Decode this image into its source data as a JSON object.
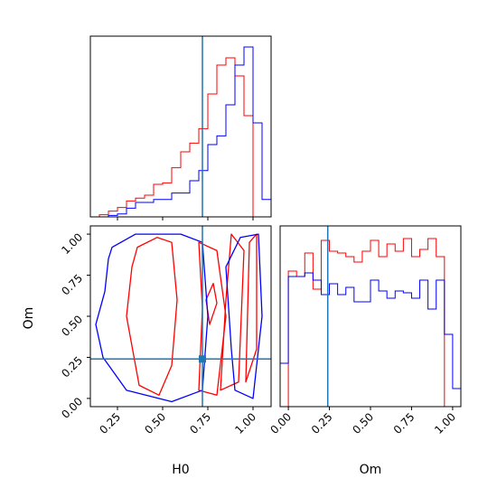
{
  "chart_data": [
    {
      "type": "histogram",
      "panel": "H0 marginal",
      "xlim": [
        0.1,
        1.1
      ],
      "truth": 0.72,
      "bin_edges": [
        0.1,
        0.15,
        0.2,
        0.25,
        0.3,
        0.35,
        0.4,
        0.45,
        0.5,
        0.55,
        0.6,
        0.65,
        0.7,
        0.75,
        0.8,
        0.85,
        0.9,
        0.95,
        1.0,
        1.05,
        1.1
      ],
      "series": [
        {
          "color": "#ff0000",
          "values": [
            0.0,
            0.3,
            0.8,
            1.3,
            2.2,
            2.6,
            3.0,
            4.5,
            4.7,
            6.8,
            9.0,
            10.2,
            12.2,
            17.0,
            21.0,
            22.0,
            19.5,
            14.0,
            0.0,
            0.0
          ]
        },
        {
          "color": "#0000ff",
          "values": [
            0.0,
            0.0,
            0.2,
            0.4,
            1.2,
            2.0,
            2.0,
            2.4,
            2.4,
            3.3,
            3.3,
            5.0,
            6.4,
            10.0,
            11.2,
            15.5,
            21.0,
            23.5,
            13.0,
            2.4
          ]
        }
      ],
      "ylim": [
        0,
        25
      ]
    },
    {
      "type": "contour",
      "panel": "H0 vs Om",
      "xlabel": "H0",
      "ylabel": "Om",
      "xlim": [
        0.1,
        1.1
      ],
      "ylim": [
        -0.05,
        1.05
      ],
      "xticks": [
        "0.25",
        "0.50",
        "0.75",
        "1.00"
      ],
      "yticks": [
        "0.00",
        "0.25",
        "0.50",
        "0.75",
        "1.00"
      ],
      "truth": [
        0.72,
        0.24
      ],
      "series": [
        {
          "color": "#ff0000",
          "levels": [
            [
              [
                0.36,
                0.92
              ],
              [
                0.47,
                0.98
              ],
              [
                0.55,
                0.95
              ],
              [
                0.58,
                0.6
              ],
              [
                0.55,
                0.2
              ],
              [
                0.48,
                0.02
              ],
              [
                0.37,
                0.08
              ],
              [
                0.3,
                0.5
              ],
              [
                0.33,
                0.8
              ],
              [
                0.36,
                0.92
              ]
            ],
            [
              [
                0.7,
                0.05
              ],
              [
                0.8,
                0.02
              ],
              [
                0.85,
                0.5
              ],
              [
                0.8,
                0.9
              ],
              [
                0.7,
                0.95
              ],
              [
                0.72,
                0.55
              ],
              [
                0.7,
                0.05
              ]
            ],
            [
              [
                0.76,
                0.45
              ],
              [
                0.8,
                0.58
              ],
              [
                0.78,
                0.7
              ],
              [
                0.74,
                0.6
              ],
              [
                0.76,
                0.45
              ]
            ],
            [
              [
                0.82,
                0.05
              ],
              [
                0.92,
                0.1
              ],
              [
                0.95,
                0.9
              ],
              [
                0.88,
                1.0
              ],
              [
                0.85,
                0.6
              ],
              [
                0.82,
                0.05
              ]
            ],
            [
              [
                0.96,
                0.1
              ],
              [
                1.02,
                0.3
              ],
              [
                1.02,
                1.0
              ],
              [
                0.98,
                0.95
              ],
              [
                0.96,
                0.1
              ]
            ]
          ]
        },
        {
          "color": "#0000ff",
          "levels": [
            [
              [
                0.22,
                0.92
              ],
              [
                0.35,
                1.0
              ],
              [
                0.6,
                1.0
              ],
              [
                0.72,
                0.95
              ],
              [
                0.75,
                0.5
              ],
              [
                0.72,
                0.05
              ],
              [
                0.55,
                -0.02
              ],
              [
                0.3,
                0.05
              ],
              [
                0.17,
                0.25
              ],
              [
                0.13,
                0.45
              ],
              [
                0.18,
                0.65
              ],
              [
                0.2,
                0.85
              ],
              [
                0.22,
                0.92
              ]
            ],
            [
              [
                0.9,
                0.05
              ],
              [
                1.0,
                0.0
              ],
              [
                1.05,
                0.5
              ],
              [
                1.03,
                1.0
              ],
              [
                0.93,
                0.98
              ],
              [
                0.85,
                0.8
              ],
              [
                0.88,
                0.3
              ],
              [
                0.9,
                0.05
              ]
            ]
          ]
        }
      ]
    },
    {
      "type": "histogram",
      "panel": "Om marginal",
      "xlabel": "Om",
      "xlim": [
        -0.05,
        1.05
      ],
      "xticks": [
        "0.00",
        "0.25",
        "0.50",
        "0.75",
        "1.00"
      ],
      "truth": 0.24,
      "bin_edges": [
        -0.05,
        0.0,
        0.05,
        0.1,
        0.15,
        0.2,
        0.25,
        0.3,
        0.35,
        0.4,
        0.45,
        0.5,
        0.55,
        0.6,
        0.65,
        0.7,
        0.75,
        0.8,
        0.85,
        0.9,
        0.95,
        1.0,
        1.05
      ],
      "series": [
        {
          "color": "#ff0000",
          "values": [
            0.0,
            0.75,
            0.72,
            0.85,
            0.65,
            0.92,
            0.86,
            0.85,
            0.83,
            0.8,
            0.86,
            0.92,
            0.83,
            0.9,
            0.86,
            0.93,
            0.83,
            0.87,
            0.93,
            0.83,
            0.0,
            0.0
          ]
        },
        {
          "color": "#0000ff",
          "values": [
            0.24,
            0.72,
            0.72,
            0.74,
            0.7,
            0.62,
            0.68,
            0.62,
            0.66,
            0.58,
            0.58,
            0.7,
            0.64,
            0.6,
            0.64,
            0.63,
            0.6,
            0.7,
            0.54,
            0.7,
            0.4,
            0.1
          ]
        }
      ],
      "ylim": [
        0,
        1.0
      ]
    }
  ],
  "labels": {
    "xlabel_left": "H0",
    "xlabel_right": "Om",
    "ylabel_left": "Om"
  },
  "colors": {
    "truth": "#1f77b4"
  }
}
